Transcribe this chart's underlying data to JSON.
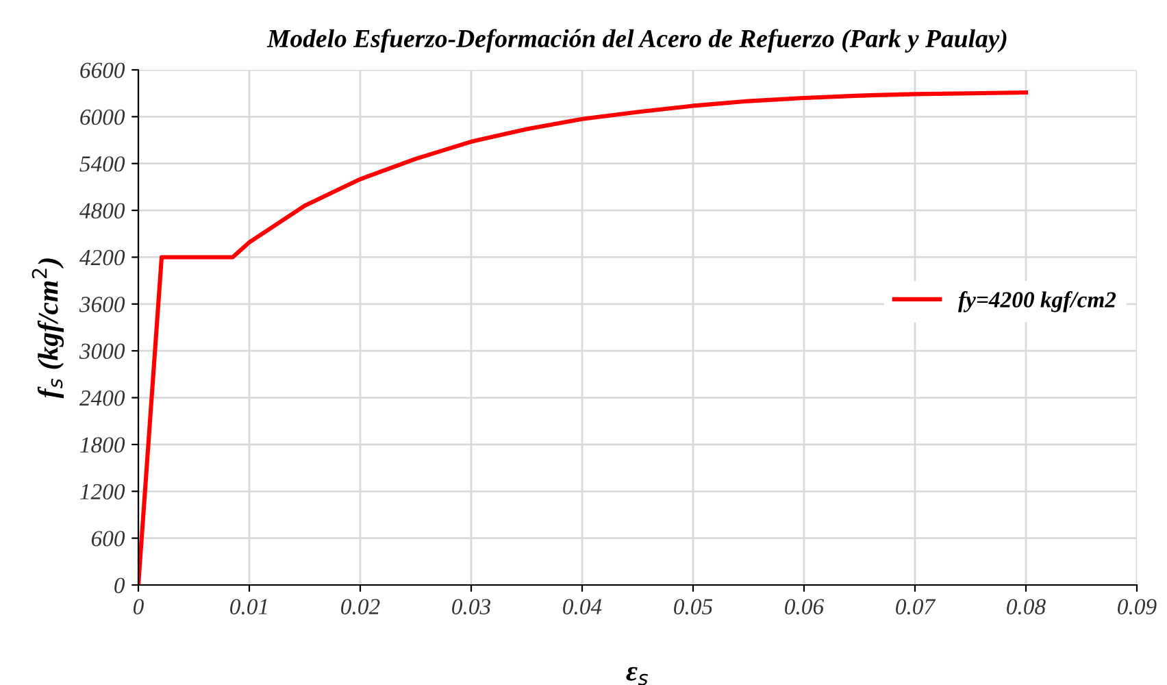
{
  "chart_data": {
    "type": "line",
    "title": "Modelo Esfuerzo-Deformación del Acero de Refuerzo (Park y Paulay)",
    "xlabel": "ε$_{s}$",
    "ylabel": "f$_{s}$ (kgf/cm$^{2}$)",
    "x": [
      0,
      0.0021,
      0.0085,
      0.01,
      0.015,
      0.02,
      0.025,
      0.03,
      0.035,
      0.04,
      0.045,
      0.05,
      0.055,
      0.06,
      0.065,
      0.07,
      0.075,
      0.08
    ],
    "series": [
      {
        "name": "fy=4200 kgf/cm2",
        "color": "#ff0000",
        "values": [
          0,
          4200,
          4200,
          4390,
          4860,
          5200,
          5460,
          5680,
          5840,
          5970,
          6060,
          6140,
          6200,
          6240,
          6270,
          6290,
          6300,
          6310
        ]
      }
    ],
    "xlim": [
      0,
      0.09
    ],
    "xticks": [
      0,
      0.01,
      0.02,
      0.03,
      0.04,
      0.05,
      0.06,
      0.07,
      0.08,
      0.09
    ],
    "ylim": [
      0,
      6600
    ],
    "yticks": [
      0,
      600,
      1200,
      1800,
      2400,
      3000,
      3600,
      4200,
      4800,
      5400,
      6000,
      6600
    ],
    "grid": true,
    "legend": "center right",
    "marker": "none",
    "line_style": "solid"
  }
}
